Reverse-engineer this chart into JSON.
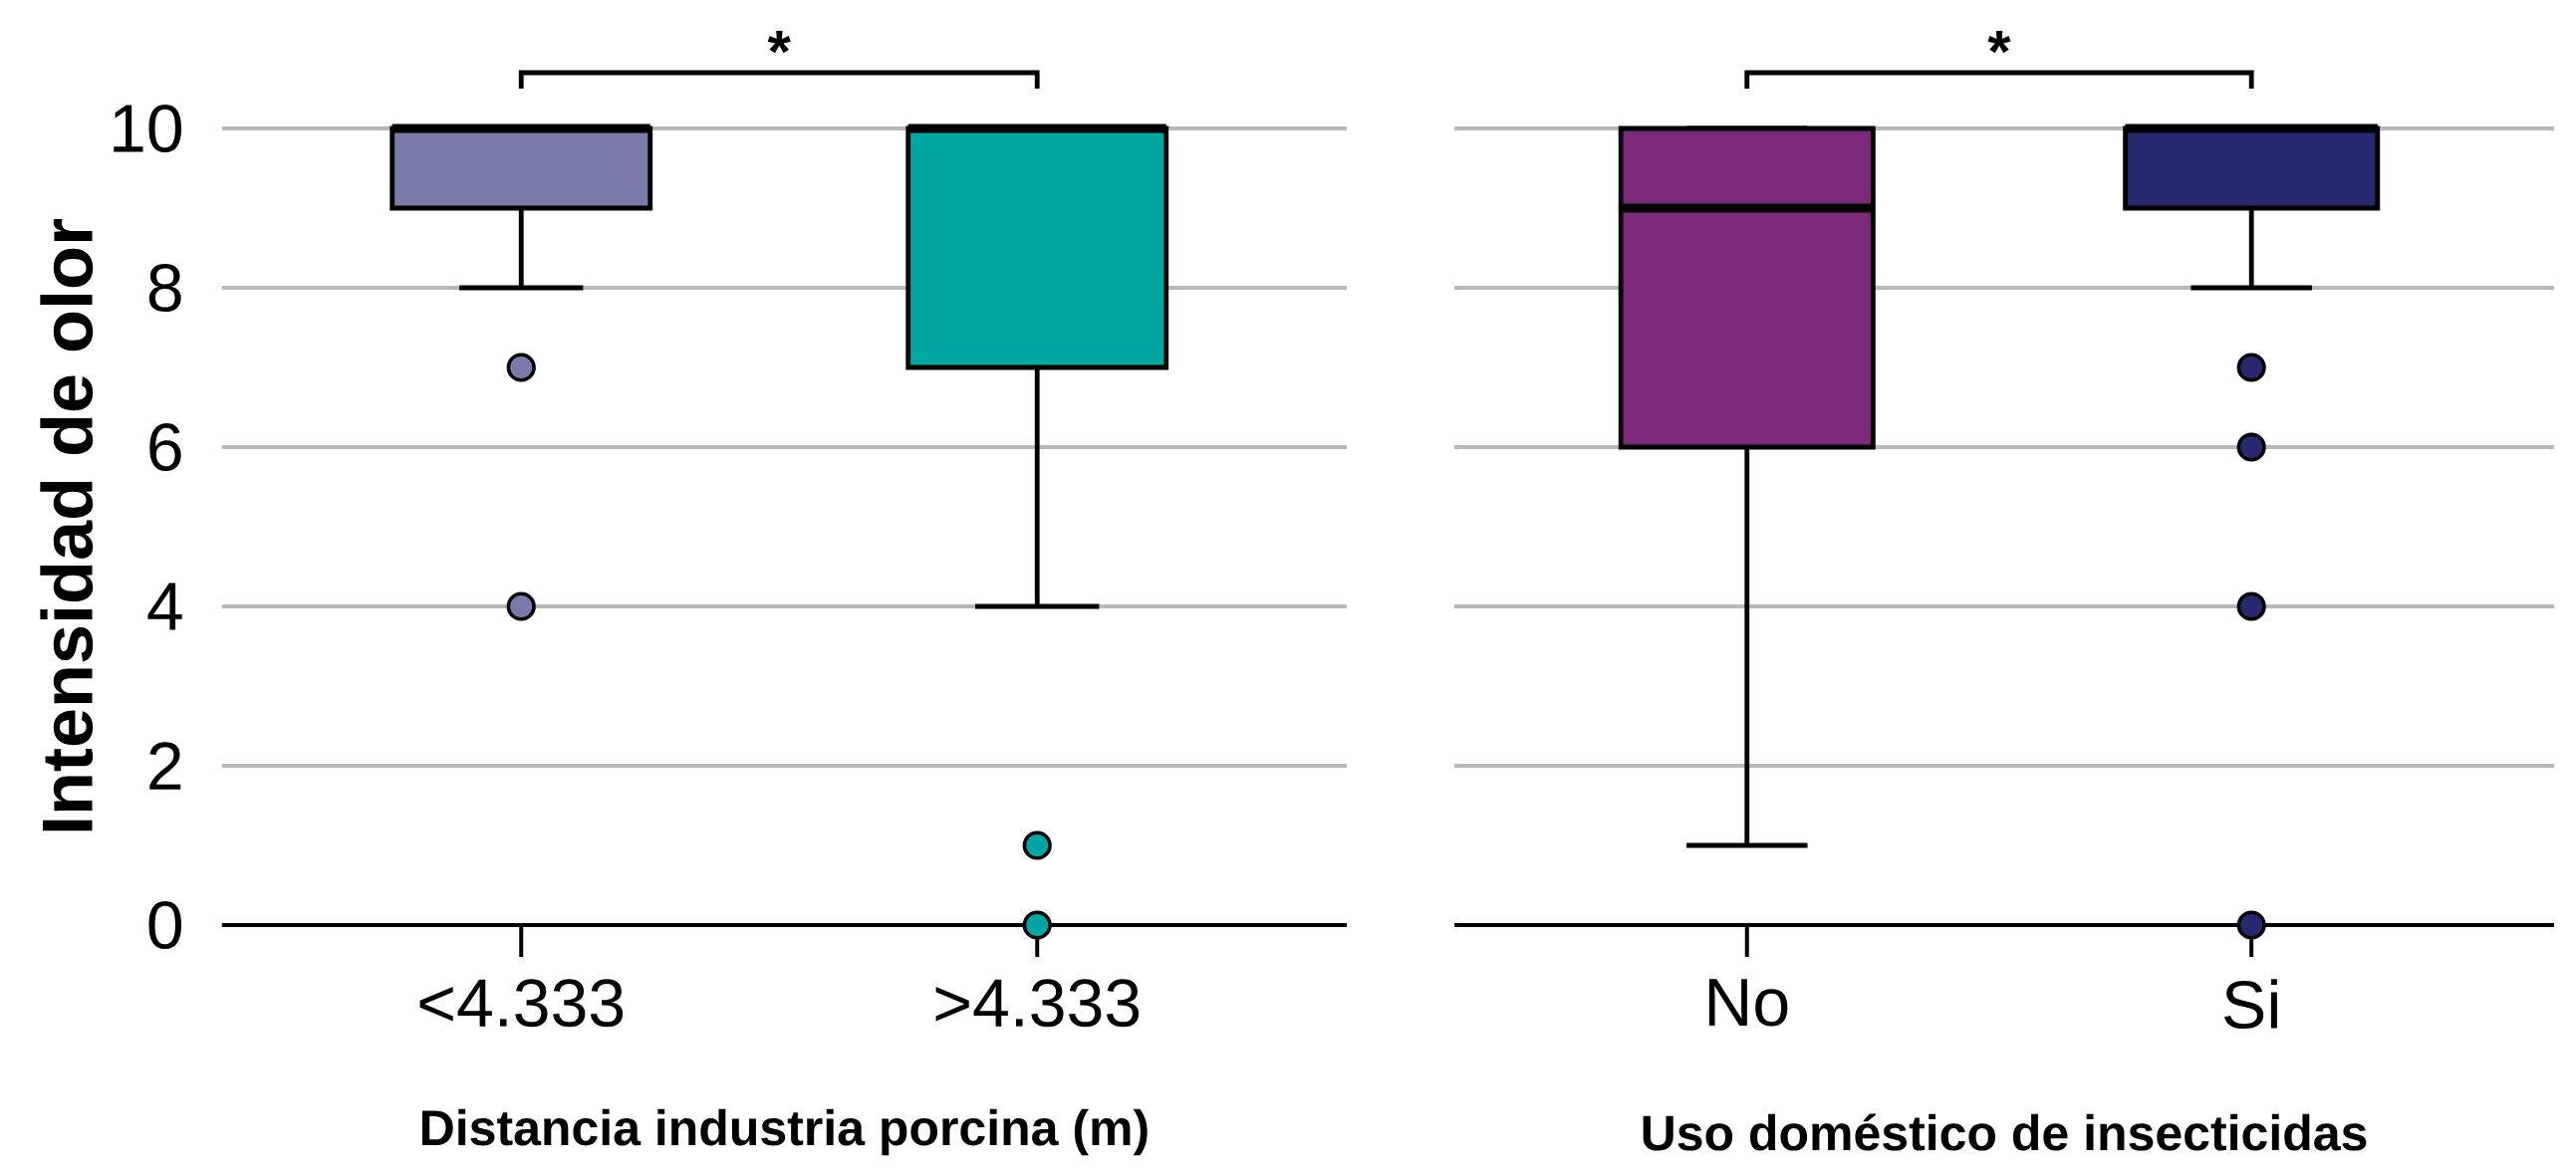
{
  "chart_data": [
    {
      "type": "box",
      "categories": [
        "<4.333",
        ">4.333"
      ],
      "xlabel": "Distancia industria porcina (m)",
      "ylabel": "Intensidad de olor",
      "colors": [
        "#7b7bab",
        "#00a7a2"
      ],
      "boxes": [
        {
          "low": 8,
          "q1": 9,
          "median": 10,
          "q3": 10,
          "high": 10,
          "outliers": [
            7,
            4
          ]
        },
        {
          "low": 4,
          "q1": 7,
          "median": 10,
          "q3": 10,
          "high": 10,
          "outliers": [
            1,
            0
          ]
        }
      ],
      "ylim": [
        0,
        10
      ],
      "yticks": [
        0,
        2,
        4,
        6,
        8,
        10
      ],
      "grid": "y",
      "annotations": [
        "*"
      ]
    },
    {
      "type": "box",
      "categories": [
        "No",
        "Si"
      ],
      "xlabel": "Uso doméstico de insecticidas",
      "colors": [
        "#7b2a7b",
        "#27296f"
      ],
      "boxes": [
        {
          "low": 1,
          "q1": 6,
          "median": 9,
          "q3": 10,
          "high": 10
        },
        {
          "low": 8,
          "q1": 9,
          "median": 10,
          "q3": 10,
          "high": 10,
          "outliers": [
            7,
            6,
            4,
            0
          ]
        }
      ],
      "ylim": [
        0,
        10
      ],
      "yticks": [
        0,
        2,
        4,
        6,
        8,
        10
      ],
      "grid": "y",
      "tick_labels": "x",
      "annotations": [
        "*"
      ]
    }
  ]
}
